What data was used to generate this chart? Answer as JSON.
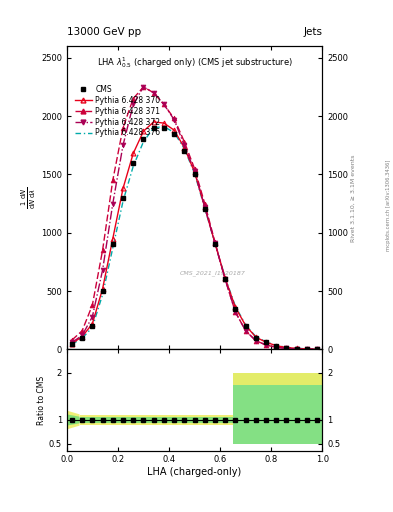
{
  "title_top": "13000 GeV pp",
  "title_right": "Jets",
  "plot_title": "LHA $\\lambda^{1}_{0.5}$ (charged only) (CMS jet substructure)",
  "xlabel": "LHA (charged-only)",
  "ylabel": "1 / mathrm{d}N / mathrm{d}lambda",
  "ylabel_right": "Rivet 3.1.10, ≥ 3.1M events",
  "watermark": "CMS_2021_I1920187",
  "right_label": "mcplots.cern.ch [arXiv:1306.3436]",
  "xlim": [
    0.0,
    1.0
  ],
  "ylim_main": [
    0,
    2600
  ],
  "ylim_ratio": [
    0.35,
    2.5
  ],
  "x_data": [
    0.02,
    0.06,
    0.1,
    0.14,
    0.18,
    0.22,
    0.26,
    0.3,
    0.34,
    0.38,
    0.42,
    0.46,
    0.5,
    0.54,
    0.58,
    0.62,
    0.66,
    0.7,
    0.74,
    0.78,
    0.82,
    0.86,
    0.9,
    0.94,
    0.98
  ],
  "cms_y": [
    50,
    100,
    200,
    500,
    900,
    1300,
    1600,
    1800,
    1900,
    1900,
    1850,
    1700,
    1500,
    1200,
    900,
    600,
    350,
    200,
    100,
    60,
    30,
    15,
    8,
    4,
    2
  ],
  "py370_y": [
    50,
    110,
    220,
    520,
    950,
    1380,
    1680,
    1870,
    1950,
    1940,
    1880,
    1730,
    1520,
    1220,
    910,
    610,
    360,
    205,
    105,
    62,
    32,
    16,
    9,
    4,
    2
  ],
  "py371_y": [
    80,
    160,
    380,
    850,
    1450,
    1900,
    2150,
    2250,
    2200,
    2100,
    1980,
    1780,
    1550,
    1250,
    920,
    600,
    320,
    160,
    75,
    38,
    18,
    9,
    4,
    2,
    1
  ],
  "py372_y": [
    60,
    120,
    280,
    680,
    1250,
    1750,
    2100,
    2250,
    2200,
    2100,
    1970,
    1750,
    1530,
    1220,
    910,
    600,
    320,
    160,
    75,
    38,
    18,
    9,
    4,
    2,
    1
  ],
  "py376_y": [
    45,
    95,
    190,
    470,
    870,
    1270,
    1570,
    1780,
    1900,
    1910,
    1860,
    1720,
    1510,
    1210,
    910,
    615,
    370,
    210,
    110,
    65,
    35,
    18,
    10,
    5,
    2
  ],
  "cms_color": "#000000",
  "py370_color": "#e8001a",
  "py371_color": "#cc003a",
  "py372_color": "#aa0055",
  "py376_color": "#00aaaa",
  "green_color": "#77dd77",
  "yellow_color": "#eeee66",
  "background_color": "#ffffff",
  "yticks_main": [
    0,
    500,
    1000,
    1500,
    2000,
    2500
  ],
  "ytick_labels_main": [
    "0",
    "500",
    "1000",
    "1500",
    "2000",
    "2500"
  ],
  "xticks": [
    0.0,
    0.2,
    0.4,
    0.6,
    0.8,
    1.0
  ],
  "ratio_yticks": [
    0.5,
    1.0,
    2.0
  ],
  "ratio_ytick_labels": [
    "0.5",
    "1",
    "2"
  ]
}
